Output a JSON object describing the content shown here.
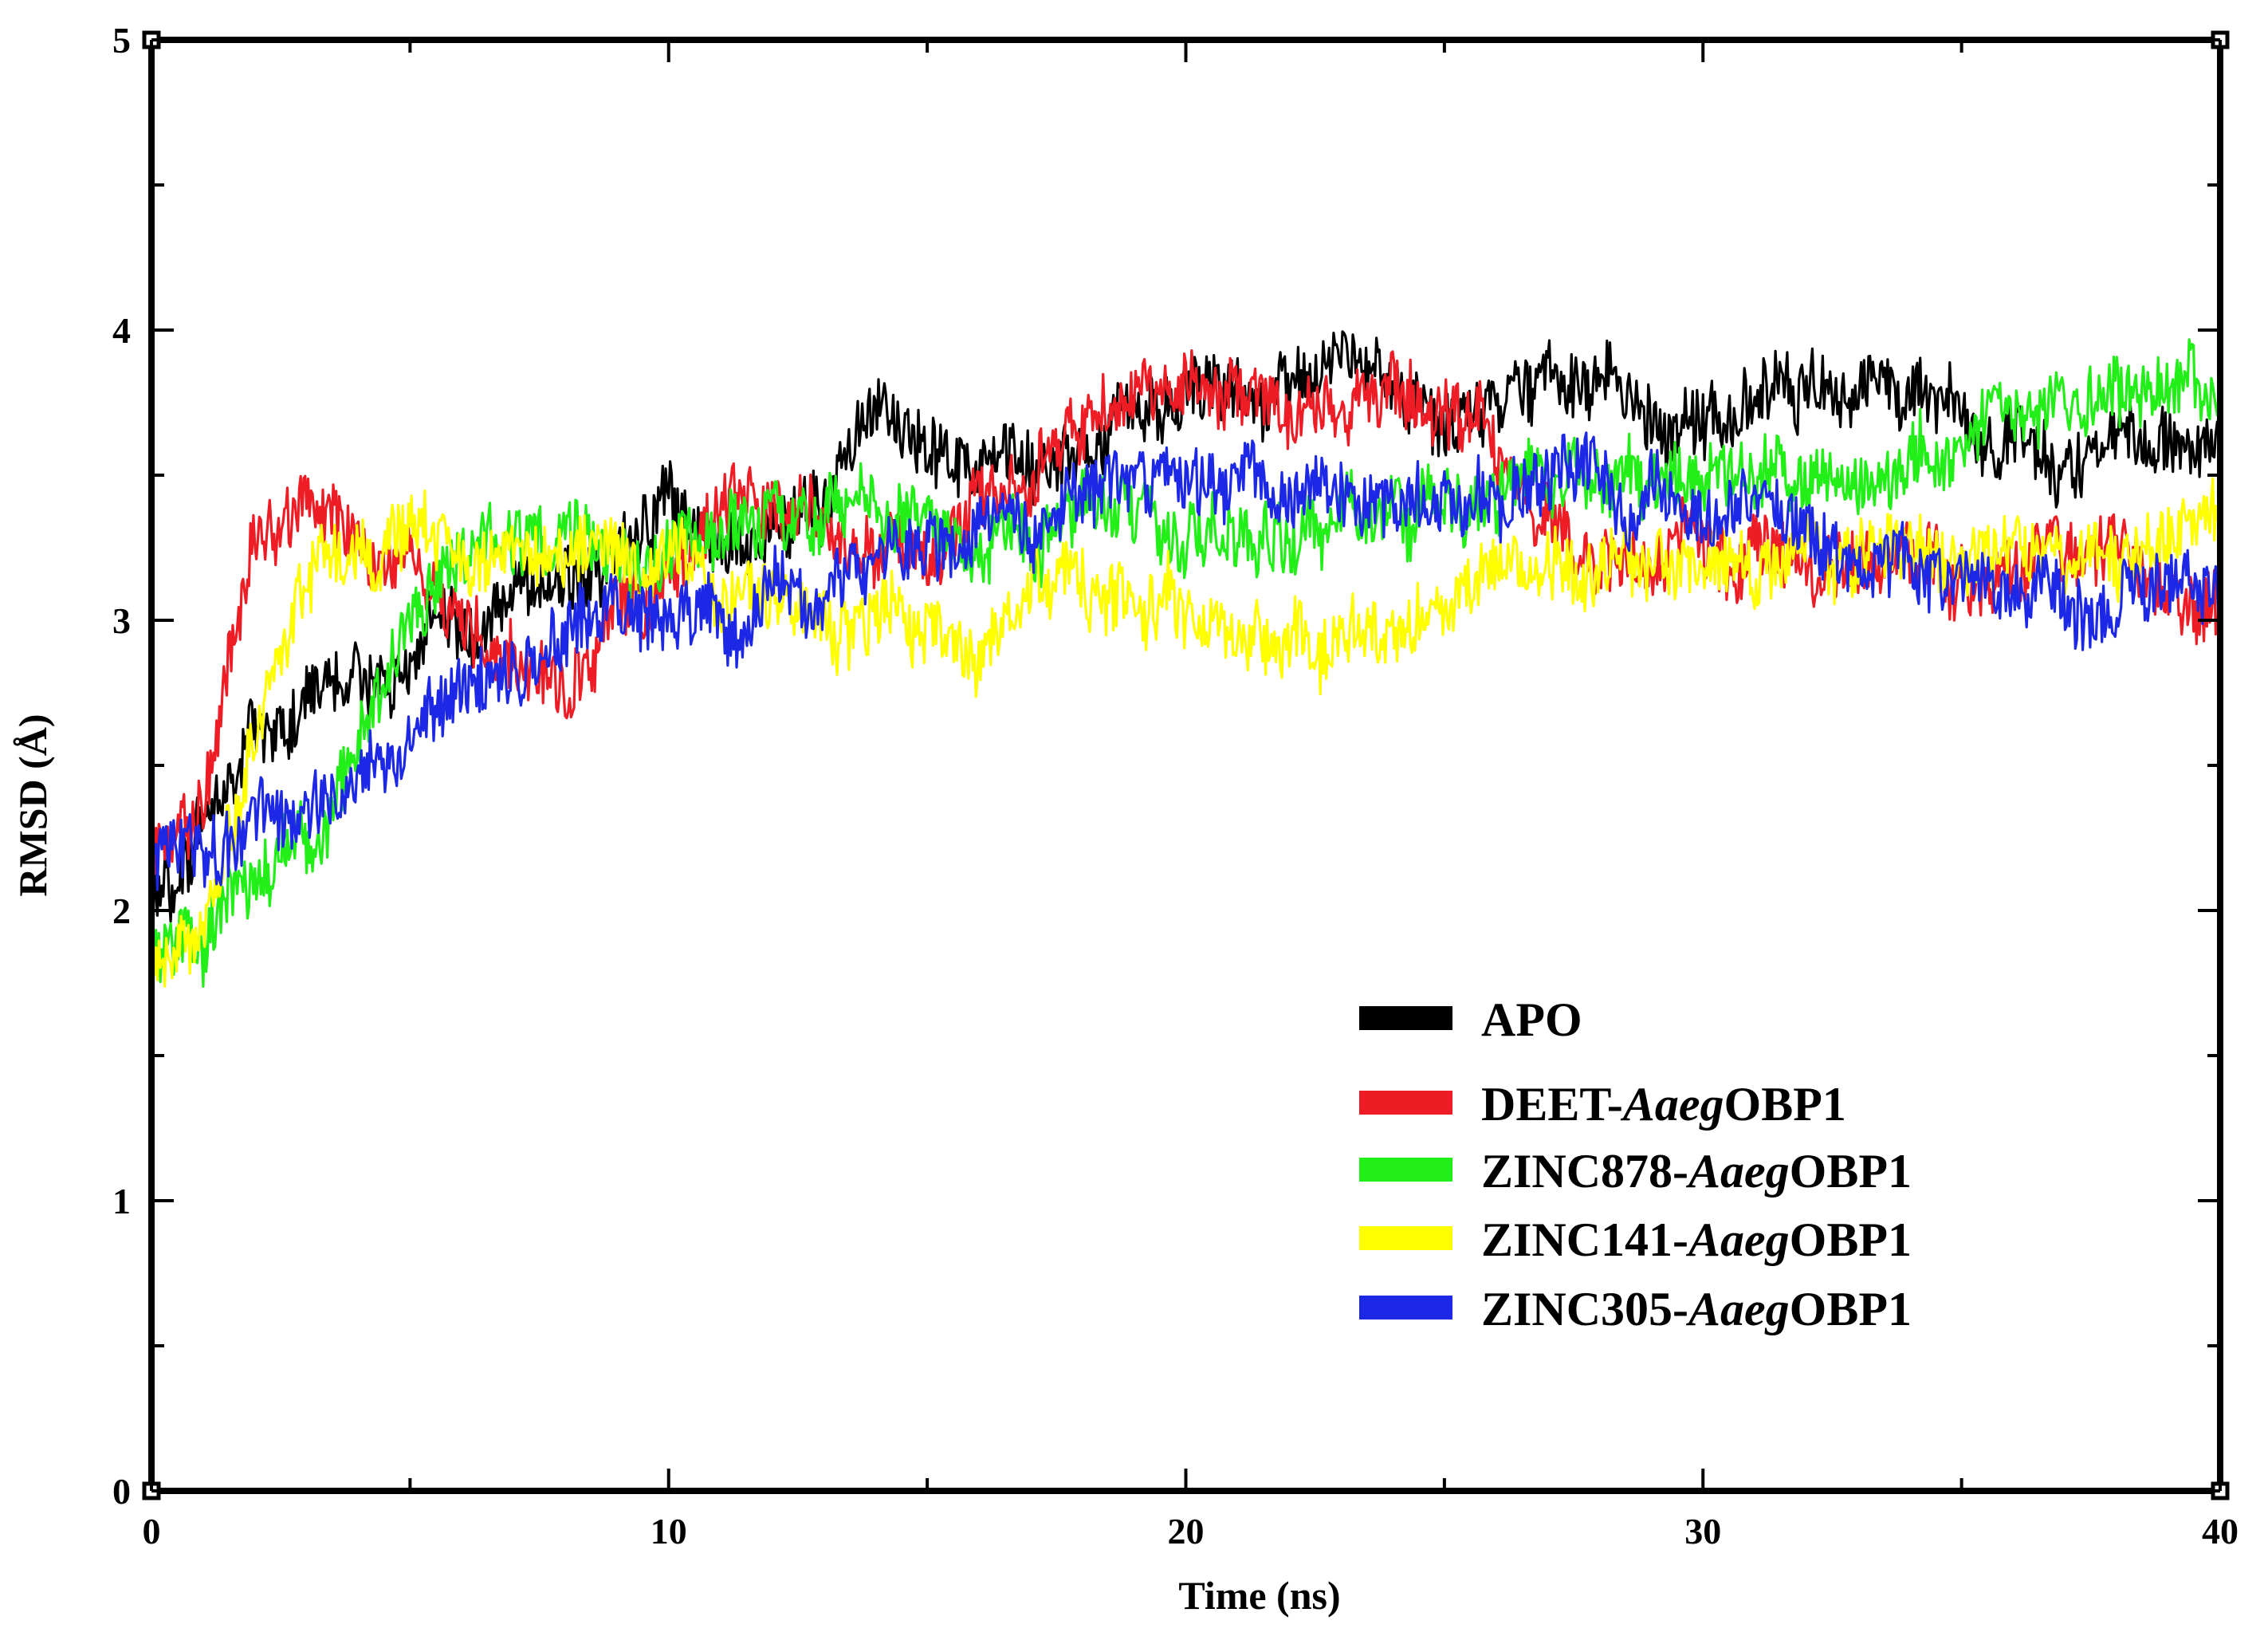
{
  "chart_data": {
    "type": "line",
    "title": "",
    "xlabel": "Time (ns)",
    "ylabel": "RMSD (Å)",
    "xlim": [
      0,
      40
    ],
    "ylim": [
      0,
      5
    ],
    "xticks": [
      "0",
      "10",
      "20",
      "30",
      "40"
    ],
    "yticks": [
      "0",
      "1",
      "2",
      "3",
      "4",
      "5"
    ],
    "grid": false,
    "legend_position": "lower-right",
    "series": [
      {
        "name": "APO",
        "label_parts": [
          "APO",
          "",
          ""
        ],
        "color": "#000000",
        "x": [
          0,
          1,
          2,
          3,
          4,
          5,
          6,
          7,
          8,
          9,
          10,
          11,
          12,
          13,
          14,
          15,
          16,
          17,
          18,
          19,
          20,
          21,
          22,
          23,
          24,
          25,
          26,
          27,
          28,
          29,
          30,
          31,
          32,
          33,
          34,
          35,
          36,
          37,
          38,
          39,
          40
        ],
        "values": [
          2.0,
          2.3,
          2.6,
          2.7,
          2.8,
          2.9,
          3.0,
          3.1,
          3.1,
          3.2,
          3.4,
          3.3,
          3.3,
          3.4,
          3.7,
          3.6,
          3.5,
          3.5,
          3.6,
          3.7,
          3.8,
          3.8,
          3.8,
          3.9,
          3.8,
          3.6,
          3.7,
          3.9,
          3.8,
          3.7,
          3.7,
          3.75,
          3.8,
          3.8,
          3.8,
          3.7,
          3.6,
          3.5,
          3.6,
          3.6,
          3.6
        ]
      },
      {
        "name": "DEET-AaegOBP1",
        "label_parts": [
          "DEET-",
          "Aaeg",
          "OBP1"
        ],
        "color": "#ee1c25",
        "x": [
          0,
          1,
          2,
          3,
          4,
          5,
          6,
          7,
          8,
          9,
          10,
          11,
          12,
          13,
          14,
          15,
          16,
          17,
          18,
          19,
          20,
          21,
          22,
          23,
          24,
          25,
          26,
          27,
          28,
          29,
          30,
          31,
          32,
          33,
          34,
          35,
          36,
          37,
          38,
          39,
          40
        ],
        "values": [
          2.2,
          2.4,
          3.3,
          3.4,
          3.3,
          3.1,
          3.0,
          2.9,
          2.8,
          3.0,
          3.2,
          3.4,
          3.4,
          3.3,
          3.2,
          3.3,
          3.4,
          3.5,
          3.7,
          3.8,
          3.8,
          3.8,
          3.7,
          3.7,
          3.8,
          3.7,
          3.6,
          3.3,
          3.2,
          3.2,
          3.2,
          3.2,
          3.15,
          3.2,
          3.2,
          3.15,
          3.2,
          3.2,
          3.2,
          3.1,
          3.1
        ]
      },
      {
        "name": "ZINC878-AaegOBP1",
        "label_parts": [
          "ZINC878-",
          "Aaeg",
          "OBP1"
        ],
        "color": "#22ee18",
        "x": [
          0,
          1,
          2,
          3,
          4,
          5,
          6,
          7,
          8,
          9,
          10,
          11,
          12,
          13,
          14,
          15,
          16,
          17,
          18,
          19,
          20,
          21,
          22,
          23,
          24,
          25,
          26,
          27,
          28,
          29,
          30,
          31,
          32,
          33,
          34,
          35,
          36,
          37,
          38,
          39,
          40
        ],
        "values": [
          1.9,
          1.9,
          2.1,
          2.2,
          2.6,
          3.0,
          3.2,
          3.3,
          3.3,
          3.2,
          3.2,
          3.3,
          3.3,
          3.35,
          3.4,
          3.3,
          3.3,
          3.3,
          3.4,
          3.4,
          3.3,
          3.3,
          3.3,
          3.4,
          3.4,
          3.4,
          3.45,
          3.5,
          3.5,
          3.5,
          3.5,
          3.5,
          3.5,
          3.5,
          3.5,
          3.6,
          3.7,
          3.7,
          3.8,
          3.8,
          3.7
        ]
      },
      {
        "name": "ZINC141-AaegOBP1",
        "label_parts": [
          "ZINC141-",
          "Aaeg",
          "OBP1"
        ],
        "color": "#ffff00",
        "x": [
          0,
          1,
          2,
          3,
          4,
          5,
          6,
          7,
          8,
          9,
          10,
          11,
          12,
          13,
          14,
          15,
          16,
          17,
          18,
          19,
          20,
          21,
          22,
          23,
          24,
          25,
          26,
          27,
          28,
          29,
          30,
          31,
          32,
          33,
          34,
          35,
          36,
          37,
          38,
          39,
          40
        ],
        "values": [
          1.8,
          1.9,
          2.6,
          3.2,
          3.2,
          3.3,
          3.3,
          3.2,
          3.2,
          3.2,
          3.2,
          3.1,
          3.1,
          3.0,
          3.0,
          3.0,
          2.9,
          3.1,
          3.1,
          3.0,
          3.1,
          3.0,
          2.9,
          2.9,
          3.0,
          3.1,
          3.2,
          3.2,
          3.2,
          3.2,
          3.2,
          3.2,
          3.2,
          3.2,
          3.3,
          3.2,
          3.2,
          3.2,
          3.2,
          3.3,
          3.4
        ]
      },
      {
        "name": "ZINC305-AaegOBP1",
        "label_parts": [
          "ZINC305-",
          "Aaeg",
          "OBP1"
        ],
        "color": "#1c28e6",
        "x": [
          0,
          1,
          2,
          3,
          4,
          5,
          6,
          7,
          8,
          9,
          10,
          11,
          12,
          13,
          14,
          15,
          16,
          17,
          18,
          19,
          20,
          21,
          22,
          23,
          24,
          25,
          26,
          27,
          28,
          29,
          30,
          31,
          32,
          33,
          34,
          35,
          36,
          37,
          38,
          39,
          40
        ],
        "values": [
          2.2,
          2.2,
          2.3,
          2.3,
          2.5,
          2.6,
          2.7,
          2.8,
          2.9,
          3.0,
          3.0,
          3.0,
          3.1,
          3.1,
          3.2,
          3.2,
          3.3,
          3.35,
          3.4,
          3.5,
          3.5,
          3.5,
          3.45,
          3.4,
          3.4,
          3.4,
          3.45,
          3.5,
          3.45,
          3.4,
          3.4,
          3.35,
          3.3,
          3.2,
          3.2,
          3.15,
          3.1,
          3.1,
          3.1,
          3.1,
          3.1
        ]
      }
    ]
  }
}
